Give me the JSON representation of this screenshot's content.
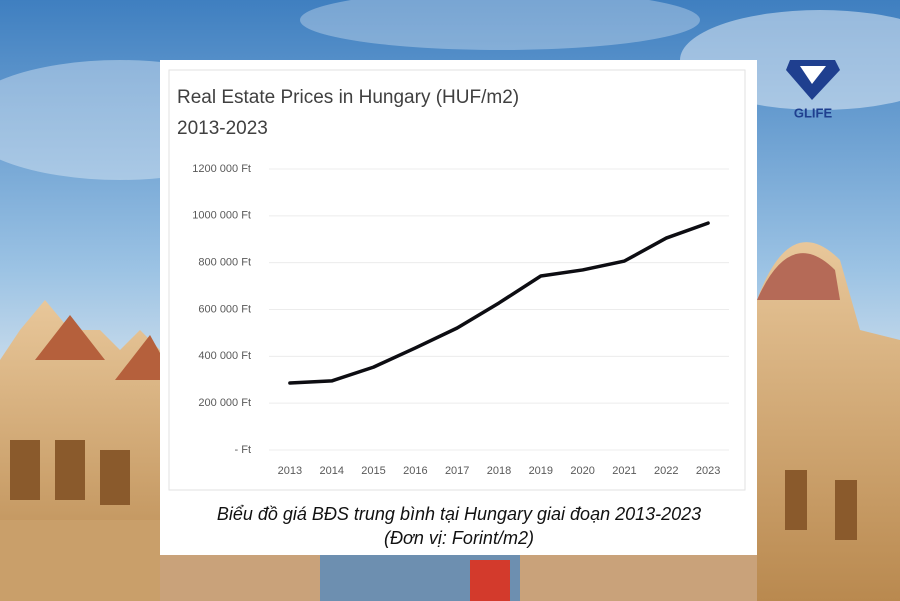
{
  "chart_data": {
    "type": "line",
    "title": "Real Estate Prices in Hungary (HUF/m2)",
    "subtitle": "2013-2023",
    "categories": [
      "2013",
      "2014",
      "2015",
      "2016",
      "2017",
      "2018",
      "2019",
      "2020",
      "2021",
      "2022",
      "2023"
    ],
    "values": [
      286000,
      295000,
      354000,
      436000,
      521000,
      628000,
      743000,
      769000,
      807000,
      905000,
      969000
    ],
    "color": "#0d0d12",
    "ylim": [
      0,
      1200000
    ],
    "yticks": [
      {
        "value": 0,
        "label": "-   Ft"
      },
      {
        "value": 200000,
        "label": "200 000 Ft"
      },
      {
        "value": 400000,
        "label": "400 000 Ft"
      },
      {
        "value": 600000,
        "label": "600 000 Ft"
      },
      {
        "value": 800000,
        "label": "800 000 Ft"
      },
      {
        "value": 1000000,
        "label": "1000 000 Ft"
      },
      {
        "value": 1200000,
        "label": "1200 000 Ft"
      }
    ],
    "grid": true
  },
  "caption": {
    "line1": "Biểu đồ giá BĐS trung bình tại Hungary giai đoạn 2013-2023",
    "line2": "(Đơn vị: Forint/m2)"
  },
  "logo": {
    "text": "GLIFE"
  }
}
